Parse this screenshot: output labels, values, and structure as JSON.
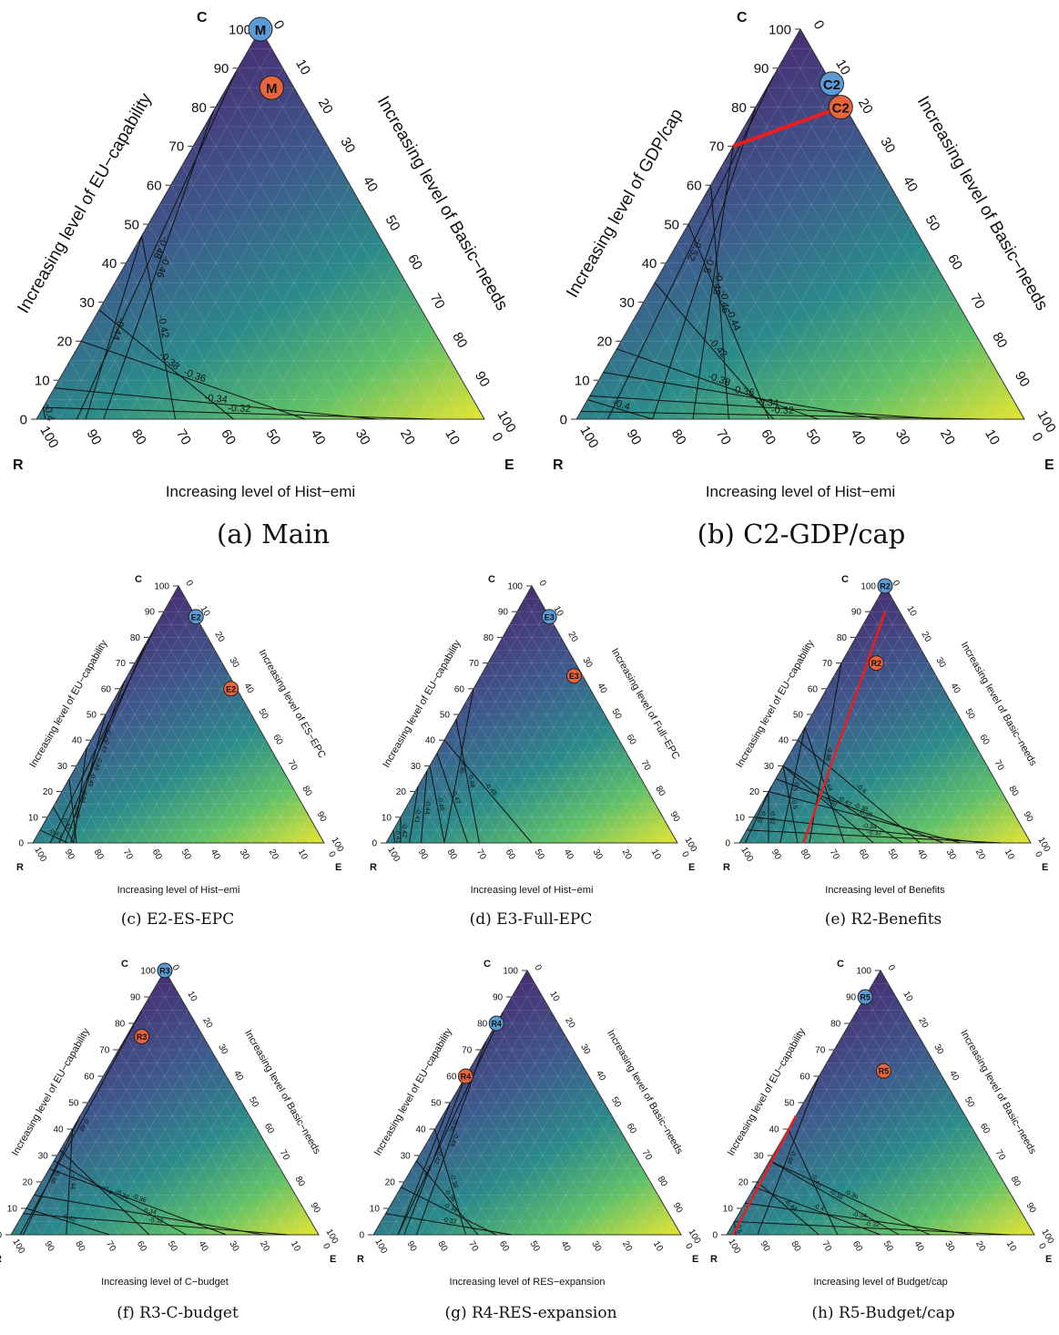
{
  "chart_data": [
    {
      "type": "ternary-contour",
      "caption": "(a) Main",
      "corners": {
        "top": "C",
        "left": "R",
        "right": "E"
      },
      "left_axis_label": "Increasing level of EU−capability",
      "right_axis_label": "Increasing level of Basic−needs",
      "bottom_axis_label": "Increasing level of Hist−emi",
      "ticks": [
        0,
        10,
        20,
        30,
        40,
        50,
        60,
        70,
        80,
        90,
        100
      ],
      "contours": [
        {
          "c": 89,
          "e0": 9,
          "label": "-0.48"
        },
        {
          "c": 79,
          "e0": 15,
          "label": "-0.46"
        },
        {
          "c": 47,
          "e0": 11,
          "label": "-0.44"
        },
        {
          "c": 47,
          "e0": 31,
          "label": "-0.42"
        },
        {
          "c": 28,
          "e0": 44,
          "label": "-0.38"
        },
        {
          "c": 20,
          "e0": 60,
          "label": "-0.36"
        },
        {
          "c": 8,
          "e0": 76,
          "label": "-0.34"
        },
        {
          "c": 3,
          "e0": 89,
          "label": "-0.32"
        },
        {
          "c": 3,
          "e0": 2,
          "label": "-0.4"
        }
      ],
      "points": [
        {
          "label": "M",
          "c": 100,
          "e": 0,
          "color": "#5b9bd5"
        },
        {
          "label": "M",
          "c": 85,
          "e": 10,
          "color": "#e8643c"
        }
      ],
      "red_line": null
    },
    {
      "type": "ternary-contour",
      "caption": "(b) C2-GDP/cap",
      "corners": {
        "top": "C",
        "left": "R",
        "right": "E"
      },
      "left_axis_label": "Increasing level of GDP/cap",
      "right_axis_label": "Increasing level of Basic−needs",
      "bottom_axis_label": "Increasing level of Hist−emi",
      "ticks": [
        0,
        10,
        20,
        30,
        40,
        50,
        60,
        70,
        80,
        90,
        100
      ],
      "contours": [
        {
          "c": 88,
          "e0": 7,
          "label": "-0.52"
        },
        {
          "c": 80,
          "e0": 17,
          "label": "-0.5"
        },
        {
          "c": 70,
          "e0": 26,
          "label": "-0.48"
        },
        {
          "c": 60,
          "e0": 34,
          "label": "-0.46"
        },
        {
          "c": 50,
          "e0": 43,
          "label": "-0.44"
        },
        {
          "c": 35,
          "e0": 44,
          "label": "-0.42"
        },
        {
          "c": 18,
          "e0": 54,
          "label": "-0.38"
        },
        {
          "c": 12,
          "e0": 68,
          "label": "-0.36"
        },
        {
          "c": 6,
          "e0": 82,
          "label": "-0.34"
        },
        {
          "c": 2,
          "e0": 91,
          "label": "-0.32"
        },
        {
          "c": 5,
          "e0": 17,
          "label": "-0.4"
        }
      ],
      "points": [
        {
          "label": "C2",
          "c": 86,
          "e": 14,
          "color": "#5b9bd5"
        },
        {
          "label": "C2",
          "c": 80,
          "e": 19,
          "color": "#e8643c"
        }
      ],
      "red_line": [
        [
          70,
          0
        ],
        [
          80,
          19
        ]
      ]
    },
    {
      "type": "ternary-contour",
      "caption": "(c) E2-ES-EPC",
      "corners": {
        "top": "C",
        "left": "R",
        "right": "E"
      },
      "left_axis_label": "Increasing level of EU−capability",
      "right_axis_label": "Increasing level of ES−EPC",
      "bottom_axis_label": "Increasing level of Hist−emi",
      "ticks": [
        0,
        10,
        20,
        30,
        40,
        50,
        60,
        70,
        80,
        90,
        100
      ],
      "contours": [
        {
          "c": 85,
          "e0": 6,
          "label": "-0.48"
        },
        {
          "c": 77,
          "e0": 9,
          "label": "-0.47"
        },
        {
          "c": 63,
          "e0": 11,
          "label": "-0.46"
        },
        {
          "c": 50,
          "e0": 13,
          "label": "-0.45"
        },
        {
          "c": 37,
          "e0": 14,
          "label": "-0.44"
        },
        {
          "c": 25,
          "e0": 15,
          "label": "-0.43"
        },
        {
          "c": 14,
          "e0": 14,
          "label": "-0.42"
        },
        {
          "c": 5,
          "e0": 12,
          "label": "-0.41"
        }
      ],
      "points": [
        {
          "label": "E2",
          "c": 88,
          "e": 12,
          "color": "#5b9bd5"
        },
        {
          "label": "E2",
          "c": 60,
          "e": 38,
          "color": "#e8643c"
        }
      ],
      "red_line": null
    },
    {
      "type": "ternary-contour",
      "caption": "(d) E3-Full-EPC",
      "corners": {
        "top": "C",
        "left": "R",
        "right": "E"
      },
      "left_axis_label": "Increasing level of EU−capability",
      "right_axis_label": "Increasing level of Full−EPC",
      "bottom_axis_label": "Increasing level of Hist−emi",
      "ticks": [
        0,
        10,
        20,
        30,
        40,
        50,
        60,
        70,
        80,
        90,
        100
      ],
      "contours": [
        {
          "c": 60,
          "e0": 20,
          "label": "-0.46"
        },
        {
          "c": 48,
          "e0": 32,
          "label": "-0.48"
        },
        {
          "c": 40,
          "e0": 50,
          "label": "-0.49"
        },
        {
          "c": 35,
          "e0": 28,
          "label": "-0.47"
        },
        {
          "c": 30,
          "e0": 20,
          "label": "-0.45"
        },
        {
          "c": 28,
          "e0": 12,
          "label": "-0.44"
        },
        {
          "c": 22,
          "e0": 8,
          "label": "-0.43"
        },
        {
          "c": 10,
          "e0": 5,
          "label": "-0.42"
        },
        {
          "c": 5,
          "e0": 3,
          "label": "-0.41"
        }
      ],
      "points": [
        {
          "label": "E3",
          "c": 88,
          "e": 12,
          "color": "#5b9bd5"
        },
        {
          "label": "E3",
          "c": 65,
          "e": 32,
          "color": "#e8643c"
        }
      ],
      "red_line": null
    },
    {
      "type": "ternary-contour",
      "caption": "(e) R2-Benefits",
      "corners": {
        "top": "C",
        "left": "R",
        "right": "E"
      },
      "left_axis_label": "Increasing level of EU−capability",
      "right_axis_label": "Increasing level of Basic−needs",
      "bottom_axis_label": "Increasing level of Benefits",
      "ticks": [
        0,
        10,
        20,
        30,
        40,
        50,
        60,
        70,
        80,
        90,
        100
      ],
      "contours": [
        {
          "c": 22,
          "e0": 2,
          "label": "-0.56"
        },
        {
          "c": 20,
          "e0": 10,
          "label": "-0.52"
        },
        {
          "c": 45,
          "e0": 14,
          "label": "-0.5"
        },
        {
          "c": 30,
          "e0": 20,
          "label": "-0.5"
        },
        {
          "c": 70,
          "e0": 24,
          "label": "-0.48"
        },
        {
          "c": 45,
          "e0": 36,
          "label": "-0.44"
        },
        {
          "c": 30,
          "e0": 46,
          "label": "-0.46"
        },
        {
          "c": 30,
          "e0": 56,
          "label": "-0.42"
        },
        {
          "c": 40,
          "e0": 62,
          "label": "-0.4"
        },
        {
          "c": 25,
          "e0": 70,
          "label": "-0.38"
        },
        {
          "c": 20,
          "e0": 76,
          "label": "-0.36"
        },
        {
          "c": 10,
          "e0": 84,
          "label": "-0.34"
        },
        {
          "c": 5,
          "e0": 90,
          "label": "-0.32"
        }
      ],
      "points": [
        {
          "label": "R2",
          "c": 100,
          "e": 0,
          "color": "#5b9bd5"
        },
        {
          "label": "R2",
          "c": 70,
          "e": 12,
          "color": "#e8643c"
        }
      ],
      "red_line": [
        [
          90,
          5
        ],
        [
          0,
          22
        ]
      ]
    },
    {
      "type": "ternary-contour",
      "caption": "(f) R3-C-budget",
      "corners": {
        "top": "C",
        "left": "R",
        "right": "E"
      },
      "left_axis_label": "Increasing level of EU−capability",
      "right_axis_label": "Increasing level of Basic−needs",
      "bottom_axis_label": "Increasing level of C−budget",
      "ticks": [
        0,
        10,
        20,
        30,
        40,
        50,
        60,
        70,
        80,
        90,
        100
      ],
      "contours": [
        {
          "c": 85,
          "e0": 3,
          "label": "-0.48"
        },
        {
          "c": 45,
          "e0": 4,
          "label": "-0.46"
        },
        {
          "c": 40,
          "e0": 18,
          "label": "-0.44"
        },
        {
          "c": 10,
          "e0": 32,
          "label": "-0.42"
        },
        {
          "c": 32,
          "e0": 45,
          "label": "-0.4"
        },
        {
          "c": 28,
          "e0": 57,
          "label": "-0.38"
        },
        {
          "c": 25,
          "e0": 70,
          "label": "-0.36"
        },
        {
          "c": 15,
          "e0": 82,
          "label": "-0.34"
        },
        {
          "c": 8,
          "e0": 90,
          "label": "-0.32"
        }
      ],
      "points": [
        {
          "label": "R3",
          "c": 100,
          "e": 0,
          "color": "#5b9bd5"
        },
        {
          "label": "R3",
          "c": 75,
          "e": 5,
          "color": "#e8643c"
        }
      ],
      "red_line": null
    },
    {
      "type": "ternary-contour",
      "caption": "(g) R4-RES-expansion",
      "corners": {
        "top": "C",
        "left": "R",
        "right": "E"
      },
      "left_axis_label": "Increasing level of EU−capability",
      "right_axis_label": "Increasing level of Basic−needs",
      "bottom_axis_label": "Increasing level of RES−expansion",
      "ticks": [
        0,
        10,
        20,
        30,
        40,
        50,
        60,
        70,
        80,
        90,
        100
      ],
      "contours": [
        {
          "c": 84,
          "e0": 8,
          "label": "-0.46"
        },
        {
          "c": 73,
          "e0": 14,
          "label": "-0.44"
        },
        {
          "c": 60,
          "e0": 10,
          "label": "-0.42"
        },
        {
          "c": 50,
          "e0": 8,
          "label": "-0.4"
        },
        {
          "c": 40,
          "e0": 30,
          "label": "-0.38"
        },
        {
          "c": 28,
          "e0": 34,
          "label": "-0.36"
        },
        {
          "c": 18,
          "e0": 40,
          "label": "-0.34"
        },
        {
          "c": 8,
          "e0": 45,
          "label": "-0.32"
        }
      ],
      "points": [
        {
          "label": "R4",
          "c": 80,
          "e": 0,
          "color": "#5b9bd5"
        },
        {
          "label": "R4",
          "c": 60,
          "e": 0,
          "color": "#e8643c"
        }
      ],
      "red_line": null
    },
    {
      "type": "ternary-contour",
      "caption": "(h) R5-Budget/cap",
      "corners": {
        "top": "C",
        "left": "R",
        "right": "E"
      },
      "left_axis_label": "Increasing level of EU−capability",
      "right_axis_label": "Increasing level of Basic−needs",
      "bottom_axis_label": "Increasing level of Budget/cap",
      "ticks": [
        0,
        10,
        20,
        30,
        40,
        50,
        60,
        70,
        80,
        90,
        100
      ],
      "contours": [
        {
          "c": 60,
          "e0": 10,
          "label": "-0.48"
        },
        {
          "c": 5,
          "e0": 3,
          "label": "-0.5"
        },
        {
          "c": 20,
          "e0": 30,
          "label": "-0.44"
        },
        {
          "c": 40,
          "e0": 36,
          "label": "-0.42"
        },
        {
          "c": 18,
          "e0": 50,
          "label": "-0.4"
        },
        {
          "c": 28,
          "e0": 56,
          "label": "-0.38"
        },
        {
          "c": 28,
          "e0": 66,
          "label": "-0.36"
        },
        {
          "c": 12,
          "e0": 80,
          "label": "-0.34"
        },
        {
          "c": 5,
          "e0": 92,
          "label": "-0.32"
        }
      ],
      "points": [
        {
          "label": "R5",
          "c": 90,
          "e": 0,
          "color": "#5b9bd5"
        },
        {
          "label": "R5",
          "c": 62,
          "e": 20,
          "color": "#e8643c"
        }
      ],
      "red_line": [
        [
          45,
          0
        ],
        [
          0,
          2
        ]
      ]
    }
  ]
}
